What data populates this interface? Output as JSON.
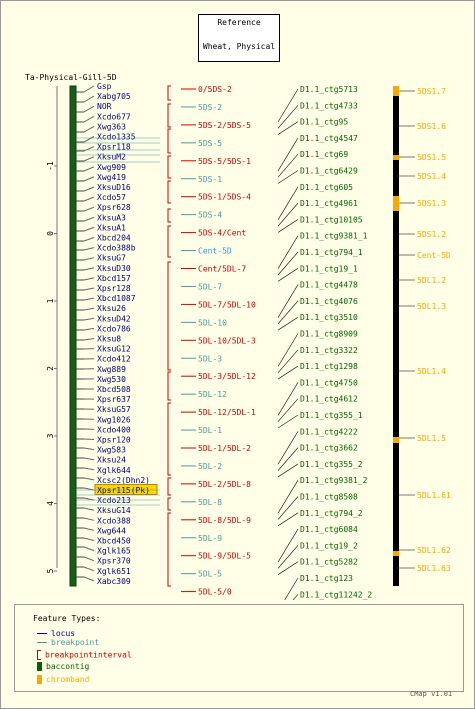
{
  "reference_box": {
    "line1": "Reference",
    "line2": "Wheat, Physical"
  },
  "map_title": "Ta-Physical-Gill-5D",
  "axis_ticks": [
    "-1",
    "0",
    "1",
    "2",
    "3",
    "4",
    "5",
    "6",
    "7"
  ],
  "loci": [
    "Gsp",
    "Xabg705",
    "NOR",
    "Xcdo677",
    "Xwg363",
    "Xcdo1335",
    "Xpsr118",
    "XksuM2",
    "Xwg909",
    "Xwg419",
    "XksuD16",
    "Xcdo57",
    "Xpsr628",
    "XksuA3",
    "XksuA1",
    "Xbcd204",
    "Xcdo388b",
    "XksuG7",
    "XksuD30",
    "Xbcd157",
    "Xpsr128",
    "Xbcd1087",
    "Xksu26",
    "XksuD42",
    "Xcdo786",
    "Xksu8",
    "XksuG12",
    "Xcdo412",
    "Xwg889",
    "Xwg530",
    "Xbcd508",
    "Xpsr637",
    "XksuG57",
    "Xwg1026",
    "Xcdo400",
    "Xpsr120",
    "Xwg583",
    "Xksu24",
    "Xglk644",
    "Xcsc2(Dhn2)",
    "Xpsr115(Pk)",
    "Xcdo213",
    "XksuG14",
    "Xcdo388",
    "Xwg644",
    "Xbcd450",
    "Xglk165",
    "Xpsr370",
    "Xglk651",
    "Xabc309"
  ],
  "highlighted_locus": "Xpsr115(Pk)",
  "breakpoints": [
    "0/5DS-2",
    "5DS-2",
    "5DS-2/5DS-5",
    "5DS-5",
    "5DS-5/5DS-1",
    "5DS-1",
    "5DS-1/5DS-4",
    "5DS-4",
    "5DS-4/Cent",
    "Cent-5D",
    "Cent/5DL-7",
    "5DL-7",
    "5DL-7/5DL-10",
    "5DL-10",
    "5DL-10/5DL-3",
    "5DL-3",
    "5DL-3/5DL-12",
    "5DL-12",
    "5DL-12/5DL-1",
    "5DL-1",
    "5DL-1/5DL-2",
    "5DL-2",
    "5DL-2/5DL-8",
    "5DL-8",
    "5DL-8/5DL-9",
    "5DL-9",
    "5DL-9/5DL-5",
    "5DL-5",
    "5DL-5/0"
  ],
  "contigs": [
    "D1.1_ctg5713",
    "D1.1_ctg4733",
    "D1.1_ctg95",
    "D1.1_ctg4547",
    "D1.1_ctg69",
    "D1.1_ctg6429",
    "D1.1_ctg605",
    "D1.1_ctg4961",
    "D1.1_ctg10105",
    "D1.1_ctg9381_1",
    "D1.1_ctg794_1",
    "D1.1_ctg19_1",
    "D1.1_ctg4478",
    "D1.1_ctg4076",
    "D1.1_ctg3510",
    "D1.1_ctg8909",
    "D1.1_ctg3322",
    "D1.1_ctg1298",
    "D1.1_ctg4750",
    "D1.1_ctg4612",
    "D1.1_ctg355_1",
    "D1.1_ctg4222",
    "D1.1_ctg3662",
    "D1.1_ctg355_2",
    "D1.1_ctg9381_2",
    "D1.1_ctg8508",
    "D1.1_ctg794_2",
    "D1.1_ctg6084",
    "D1.1_ctg19_2",
    "D1.1_ctg5282",
    "D1.1_ctg123",
    "D1.1_ctg11242_2"
  ],
  "chromband_labels": [
    "5DS1.7",
    "5DS1.6",
    "5DS1.5",
    "5DS1.4",
    "5DS1.3",
    "5DS1.2",
    "Cent-5D",
    "5DL1.2",
    "5DL1.3",
    "5DL1.4",
    "5DL1.5",
    "5DL1.61",
    "5DL1.62",
    "5DL1.63"
  ],
  "legend": {
    "title": "Feature Types:",
    "items": [
      {
        "label": "locus",
        "color": "#000080"
      },
      {
        "label": "breakpoint",
        "color": "#4a9a9a"
      },
      {
        "label": "breakpointinterval",
        "color": "#cc0000"
      },
      {
        "label": "baccontig",
        "color": "#006400"
      },
      {
        "label": "chromband",
        "color": "#ffa500"
      }
    ]
  },
  "colors": {
    "locus_text": "#000080",
    "breakpoint": "#4a9a9a",
    "interval": "#cc0000",
    "contig": "#006400",
    "chromband": "#ffa500",
    "centromere_text": "#2e9ad0",
    "highlight": "#ffd700"
  },
  "footer": "CMap v1.01"
}
